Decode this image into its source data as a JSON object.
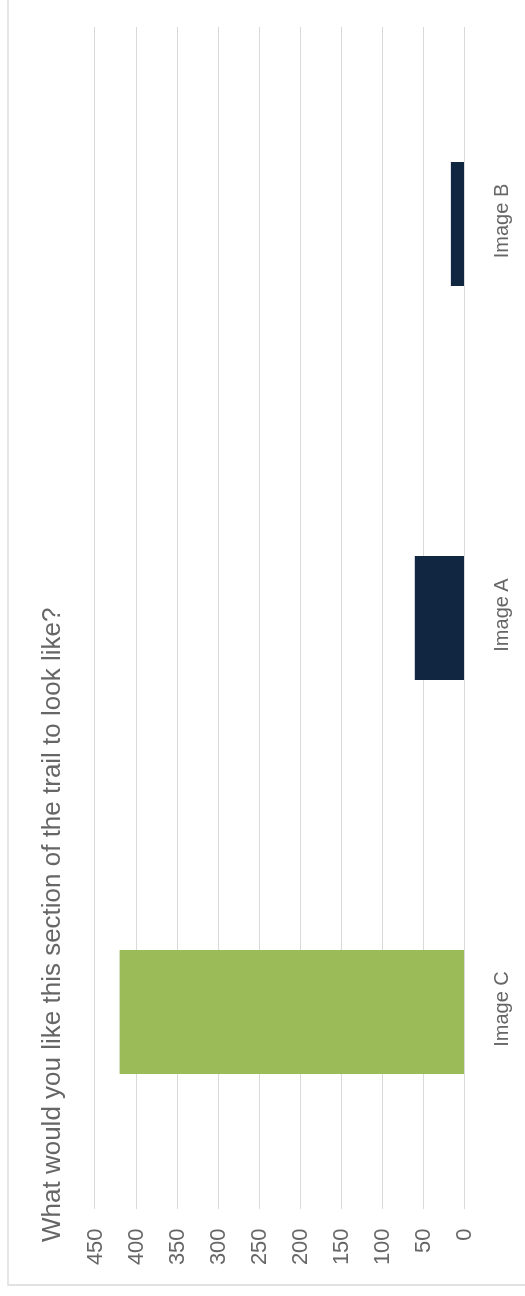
{
  "chart_data": {
    "type": "bar",
    "orientation": "horizontal",
    "title": "What would you like this section of the trail to look like?",
    "categories": [
      "Image B",
      "Image A",
      "Image C"
    ],
    "values": [
      16,
      60,
      420
    ],
    "colors": [
      "#112641",
      "#112641",
      "#9bbb59"
    ],
    "xlim": [
      450,
      0
    ],
    "xticks": [
      0,
      50,
      100,
      150,
      200,
      250,
      300,
      350,
      400,
      450
    ],
    "grid": "x"
  }
}
